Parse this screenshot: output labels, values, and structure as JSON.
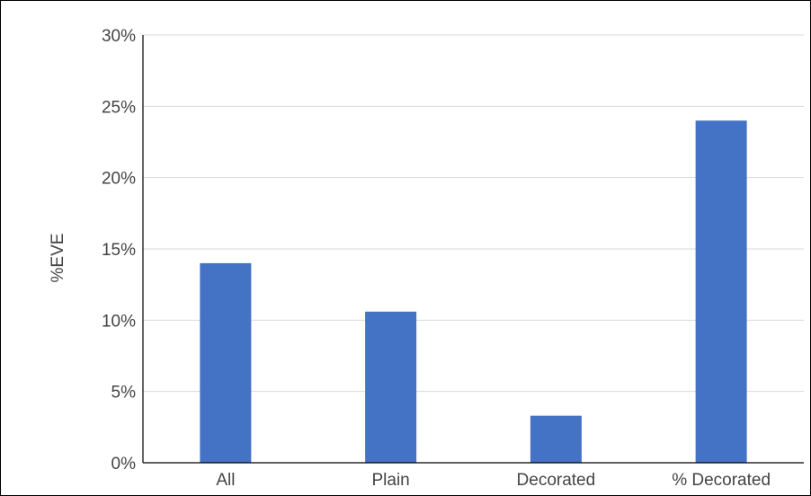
{
  "chart_data": {
    "type": "bar",
    "title": "",
    "xlabel": "",
    "ylabel": "%EVE",
    "categories": [
      "All",
      "Plain",
      "Decorated",
      "% Decorated"
    ],
    "values": [
      0.14,
      0.106,
      0.033,
      0.24
    ],
    "ylim": [
      0,
      0.3
    ],
    "yticks": [
      0,
      0.05,
      0.1,
      0.15,
      0.2,
      0.25,
      0.3
    ],
    "ytick_labels": [
      "0%",
      "5%",
      "10%",
      "15%",
      "20%",
      "25%",
      "30%"
    ],
    "grid": true,
    "legend": "none",
    "colors": {
      "bar": "#4472c4",
      "grid": "#d9d9d9",
      "axis": "#000000",
      "text": "#444444"
    }
  }
}
